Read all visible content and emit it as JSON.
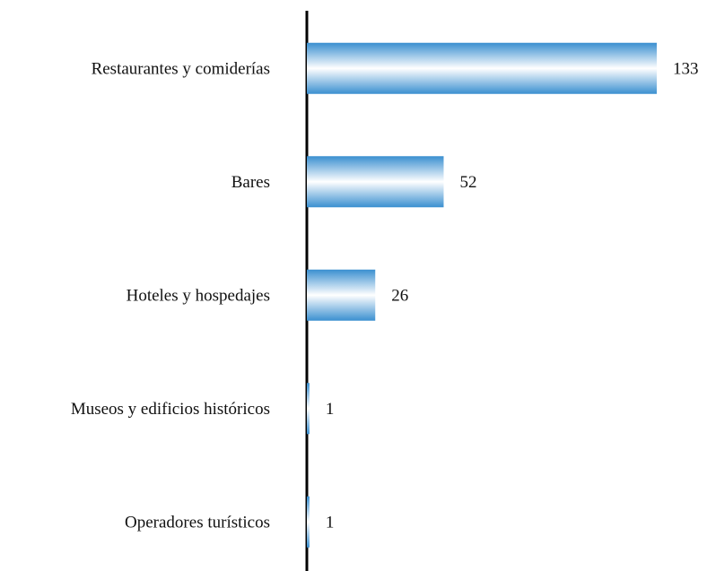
{
  "chart_data": {
    "type": "barh",
    "categories": [
      "Restaurantes y comiderías",
      "Bares",
      "Hoteles y hospedajes",
      "Museos y edificios históricos",
      "Operadores turísticos"
    ],
    "values": [
      133,
      52,
      26,
      1,
      1
    ],
    "color": "#3a8fd0"
  }
}
